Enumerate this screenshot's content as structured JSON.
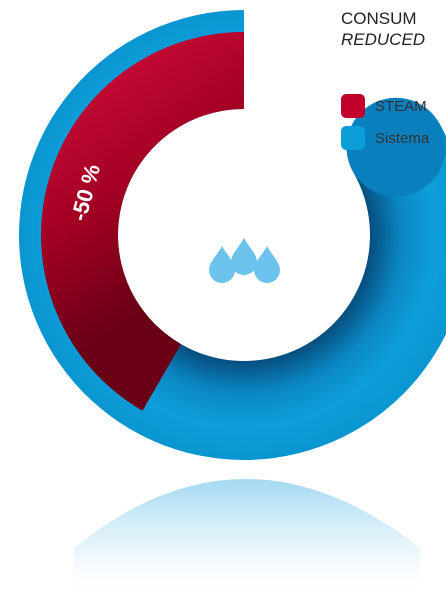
{
  "header": {
    "line1": "CONSUM",
    "line2": "REDUCED"
  },
  "legend": [
    {
      "label": "STEAM",
      "color": "#c0002a"
    },
    {
      "label": "Sistema",
      "color": "#0b9ed8"
    }
  ],
  "icon": {
    "name": "water-drops-icon",
    "color": "#6cc3ee"
  },
  "chart_data": {
    "type": "donut",
    "series": [
      {
        "name": "STEAM",
        "value": 50,
        "color": "#c0002a"
      },
      {
        "name": "Sistema",
        "value": 100,
        "color": "#0b9ed8"
      }
    ],
    "annotations": [
      {
        "text": "-50 %",
        "series": "STEAM"
      }
    ]
  }
}
